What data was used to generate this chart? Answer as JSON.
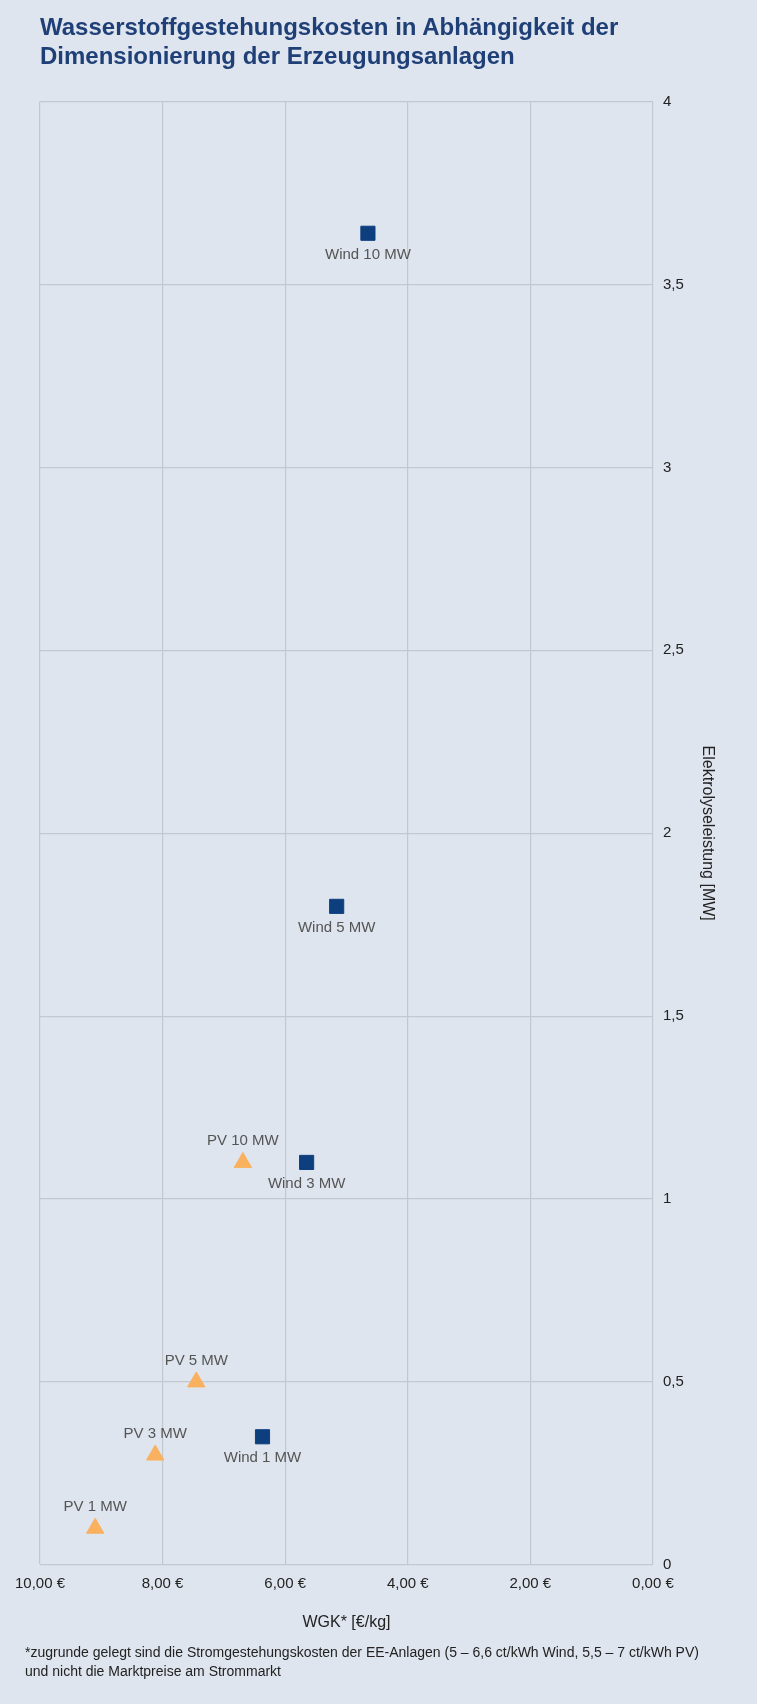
{
  "chart_data": {
    "type": "scatter",
    "title": "Wasserstoffgestehungskosten in Abhängigkeit der Dimensionierung der Erzeugungsanlagen",
    "xlabel": "WGK* [€/kg]",
    "ylabel": "Elektrolyseleistung [MW]",
    "xlim": [
      10,
      0
    ],
    "xticks": [
      {
        "value": 10,
        "label": "10,00 €"
      },
      {
        "value": 8,
        "label": "8,00 €"
      },
      {
        "value": 6,
        "label": "6,00 €"
      },
      {
        "value": 4,
        "label": "4,00 €"
      },
      {
        "value": 2,
        "label": "2,00 €"
      },
      {
        "value": 0,
        "label": "0,00 €"
      }
    ],
    "ylim": [
      0,
      4
    ],
    "yticks": [
      0,
      {
        "value": 0.5,
        "label": "0,5"
      },
      1,
      {
        "value": 1.5,
        "label": "1,5"
      },
      2,
      {
        "value": 2.5,
        "label": "2,5"
      },
      3,
      {
        "value": 3.5,
        "label": "3,5"
      },
      4
    ],
    "grid": true,
    "legend": false,
    "series": [
      {
        "color": "#f9b15f",
        "marker": "triangle",
        "x": [
          9.1,
          8.12,
          7.45,
          6.69
        ],
        "values": [
          0.1,
          0.3,
          0.5,
          1.1
        ]
      },
      {
        "color": "#0d3f7f",
        "marker": "square",
        "x": [
          6.37,
          5.65,
          5.16,
          4.65
        ],
        "values": [
          0.35,
          1.1,
          1.8,
          3.64
        ]
      }
    ],
    "annotations": [
      {
        "text": "PV 1 MW",
        "x": 9.1,
        "y": 0.1
      },
      {
        "text": "PV 3 MW",
        "x": 8.12,
        "y": 0.3
      },
      {
        "text": "PV 5 MW",
        "x": 7.45,
        "y": 0.5
      },
      {
        "text": "PV 10 MW",
        "x": 6.69,
        "y": 1.1
      },
      {
        "text": "Wind 1 MW",
        "x": 6.37,
        "y": 0.35
      },
      {
        "text": "Wind 3 MW",
        "x": 5.65,
        "y": 1.1
      },
      {
        "text": "Wind 5 MW",
        "x": 5.16,
        "y": 1.8
      },
      {
        "text": "Wind 10 MW",
        "x": 4.65,
        "y": 3.64
      },
      "*zugrunde gelegt sind die Stromgestehungskosten der EE-Anlagen (5 – 6,6 ct/kWh Wind, 5,5 – 7 ct/kWh PV) und nicht die Marktpreise am Strommarkt"
    ]
  }
}
